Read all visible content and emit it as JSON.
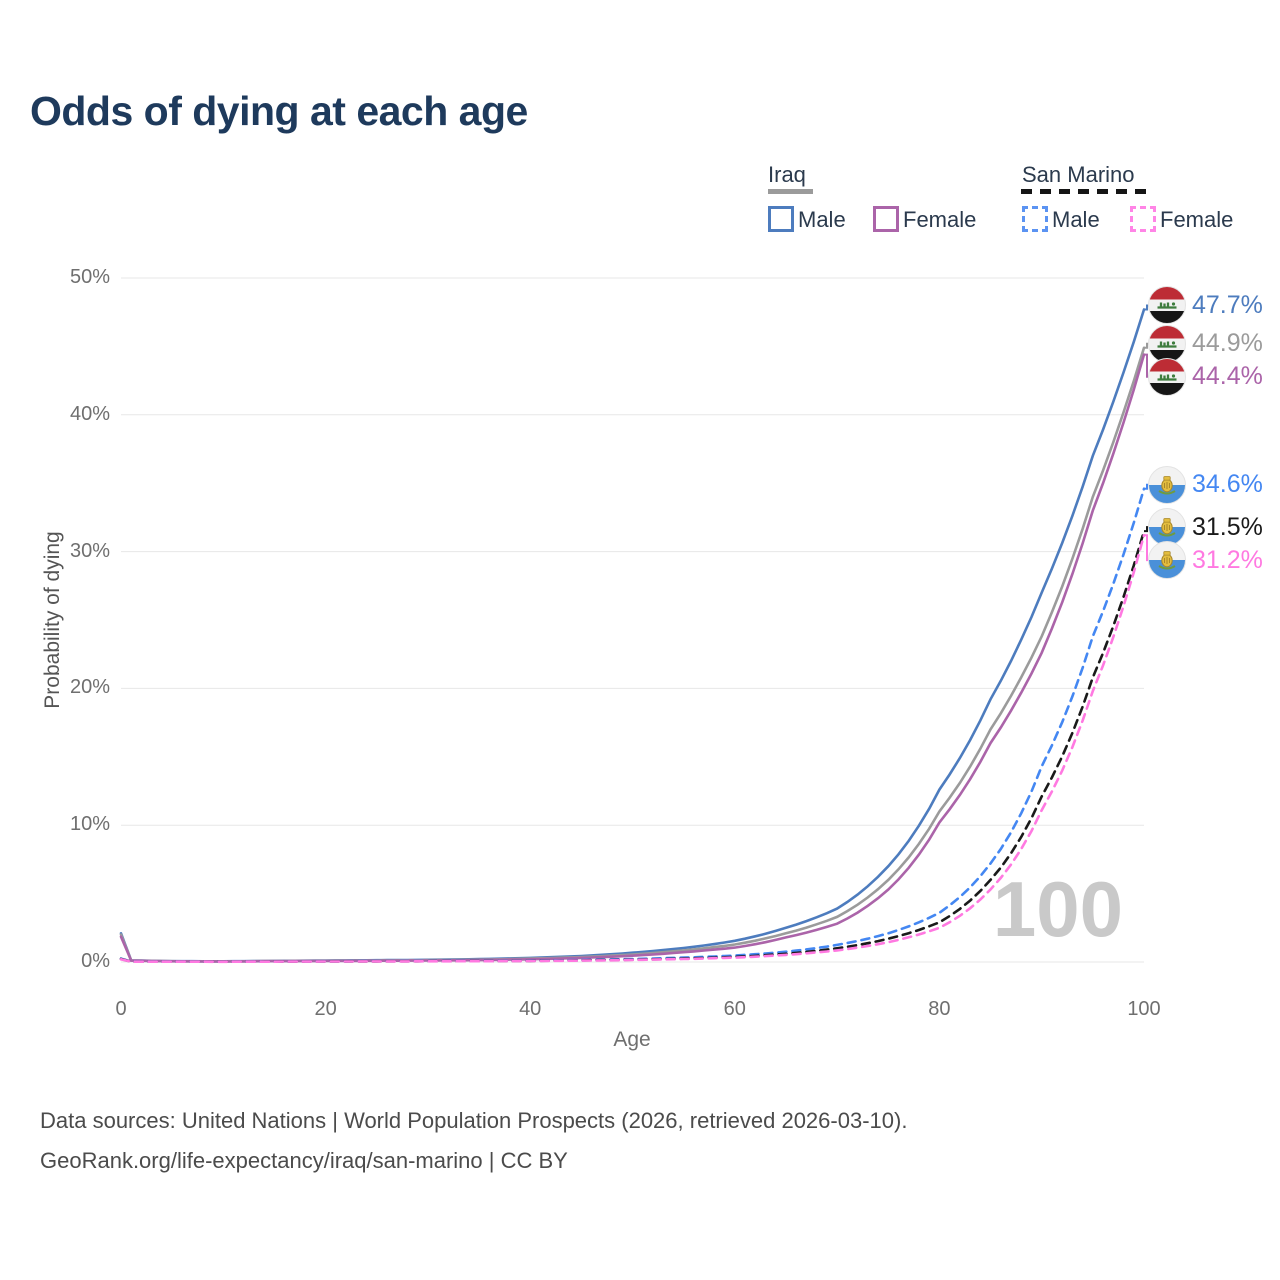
{
  "title": "Odds of dying at each age",
  "legend": {
    "iraq": {
      "label": "Iraq",
      "male": "Male",
      "female": "Female"
    },
    "san_marino": {
      "label": "San Marino",
      "male": "Male",
      "female": "Female"
    }
  },
  "axes": {
    "y_title": "Probability of dying",
    "x_title": "Age",
    "y_ticks": [
      "0%",
      "10%",
      "20%",
      "30%",
      "40%",
      "50%"
    ],
    "x_ticks": [
      "0",
      "20",
      "40",
      "60",
      "80",
      "100"
    ]
  },
  "watermark_age": "100",
  "footer": {
    "line1": "Data sources: United Nations | World Population Prospects (2026, retrieved 2026-03-10).",
    "line2": "GeoRank.org/life-expectancy/iraq/san-marino | CC BY"
  },
  "colors": {
    "title": "#1e3a5c",
    "grid": "#e7e7e7",
    "iraq_male": "#4d7cbe",
    "iraq_total": "#9b9b9b",
    "iraq_female": "#ab64a9",
    "sm_male": "#4487f2",
    "sm_total": "#1a1a1a",
    "sm_female": "#ff79e1",
    "watermark": "#c9c9c9"
  },
  "chart_data": {
    "type": "line",
    "title": "Odds of dying at each age",
    "xlabel": "Age",
    "ylabel": "Probability of dying",
    "xlim": [
      0,
      100
    ],
    "ylim_pct": [
      0,
      50
    ],
    "grid": "horizontal",
    "legend_position": "top-right",
    "series": [
      {
        "name": "Iraq Male",
        "color": "#4d7cbe",
        "dashed": false,
        "flag": "iraq",
        "end_label": "47.7%",
        "points": [
          [
            0,
            2.1
          ],
          [
            1,
            0.12
          ],
          [
            5,
            0.06
          ],
          [
            10,
            0.05
          ],
          [
            15,
            0.08
          ],
          [
            20,
            0.11
          ],
          [
            25,
            0.13
          ],
          [
            30,
            0.16
          ],
          [
            35,
            0.21
          ],
          [
            40,
            0.3
          ],
          [
            45,
            0.44
          ],
          [
            50,
            0.68
          ],
          [
            55,
            1.02
          ],
          [
            60,
            1.55
          ],
          [
            65,
            2.5
          ],
          [
            70,
            3.9
          ],
          [
            75,
            7.0
          ],
          [
            80,
            12.6
          ],
          [
            85,
            19.2
          ],
          [
            90,
            27.0
          ],
          [
            95,
            37.0
          ],
          [
            100,
            47.7
          ]
        ]
      },
      {
        "name": "Iraq Both sexes",
        "color": "#9b9b9b",
        "dashed": false,
        "flag": "iraq",
        "end_label": "44.9%",
        "points": [
          [
            0,
            2.0
          ],
          [
            1,
            0.11
          ],
          [
            5,
            0.055
          ],
          [
            10,
            0.045
          ],
          [
            15,
            0.07
          ],
          [
            20,
            0.09
          ],
          [
            25,
            0.11
          ],
          [
            30,
            0.13
          ],
          [
            35,
            0.17
          ],
          [
            40,
            0.25
          ],
          [
            45,
            0.36
          ],
          [
            50,
            0.55
          ],
          [
            55,
            0.85
          ],
          [
            60,
            1.28
          ],
          [
            65,
            2.1
          ],
          [
            70,
            3.3
          ],
          [
            75,
            6.0
          ],
          [
            80,
            11.0
          ],
          [
            85,
            17.0
          ],
          [
            90,
            23.8
          ],
          [
            95,
            34.0
          ],
          [
            100,
            44.9
          ]
        ]
      },
      {
        "name": "Iraq Female",
        "color": "#ab64a9",
        "dashed": false,
        "flag": "iraq",
        "end_label": "44.4%",
        "points": [
          [
            0,
            1.85
          ],
          [
            1,
            0.1
          ],
          [
            5,
            0.05
          ],
          [
            10,
            0.04
          ],
          [
            15,
            0.06
          ],
          [
            20,
            0.07
          ],
          [
            25,
            0.09
          ],
          [
            30,
            0.11
          ],
          [
            35,
            0.14
          ],
          [
            40,
            0.2
          ],
          [
            45,
            0.3
          ],
          [
            50,
            0.46
          ],
          [
            55,
            0.72
          ],
          [
            60,
            1.05
          ],
          [
            65,
            1.8
          ],
          [
            70,
            2.8
          ],
          [
            75,
            5.3
          ],
          [
            80,
            10.2
          ],
          [
            85,
            16.0
          ],
          [
            90,
            22.6
          ],
          [
            95,
            33.0
          ],
          [
            100,
            44.4
          ]
        ]
      },
      {
        "name": "San Marino Male",
        "color": "#4487f2",
        "dashed": true,
        "flag": "san_marino",
        "end_label": "34.6%",
        "points": [
          [
            0,
            0.25
          ],
          [
            1,
            0.03
          ],
          [
            10,
            0.025
          ],
          [
            20,
            0.05
          ],
          [
            30,
            0.07
          ],
          [
            40,
            0.1
          ],
          [
            45,
            0.15
          ],
          [
            50,
            0.22
          ],
          [
            55,
            0.32
          ],
          [
            60,
            0.47
          ],
          [
            65,
            0.75
          ],
          [
            70,
            1.25
          ],
          [
            75,
            2.1
          ],
          [
            80,
            3.6
          ],
          [
            85,
            7.2
          ],
          [
            90,
            14.3
          ],
          [
            95,
            23.8
          ],
          [
            100,
            34.6
          ]
        ]
      },
      {
        "name": "San Marino Both sexes",
        "color": "#1a1a1a",
        "dashed": true,
        "flag": "san_marino",
        "end_label": "31.5%",
        "points": [
          [
            0,
            0.22
          ],
          [
            1,
            0.025
          ],
          [
            10,
            0.02
          ],
          [
            20,
            0.04
          ],
          [
            30,
            0.055
          ],
          [
            40,
            0.08
          ],
          [
            45,
            0.12
          ],
          [
            50,
            0.17
          ],
          [
            55,
            0.25
          ],
          [
            60,
            0.37
          ],
          [
            65,
            0.6
          ],
          [
            70,
            1.0
          ],
          [
            75,
            1.7
          ],
          [
            80,
            2.9
          ],
          [
            85,
            6.0
          ],
          [
            90,
            12.1
          ],
          [
            95,
            20.8
          ],
          [
            100,
            31.5
          ]
        ]
      },
      {
        "name": "San Marino Female",
        "color": "#ff79e1",
        "dashed": true,
        "flag": "san_marino",
        "end_label": "31.2%",
        "points": [
          [
            0,
            0.2
          ],
          [
            1,
            0.02
          ],
          [
            10,
            0.018
          ],
          [
            20,
            0.035
          ],
          [
            30,
            0.05
          ],
          [
            40,
            0.07
          ],
          [
            45,
            0.1
          ],
          [
            50,
            0.15
          ],
          [
            55,
            0.22
          ],
          [
            60,
            0.32
          ],
          [
            65,
            0.52
          ],
          [
            70,
            0.85
          ],
          [
            75,
            1.45
          ],
          [
            80,
            2.5
          ],
          [
            85,
            5.3
          ],
          [
            90,
            11.1
          ],
          [
            95,
            19.8
          ],
          [
            100,
            31.2
          ]
        ]
      }
    ]
  }
}
